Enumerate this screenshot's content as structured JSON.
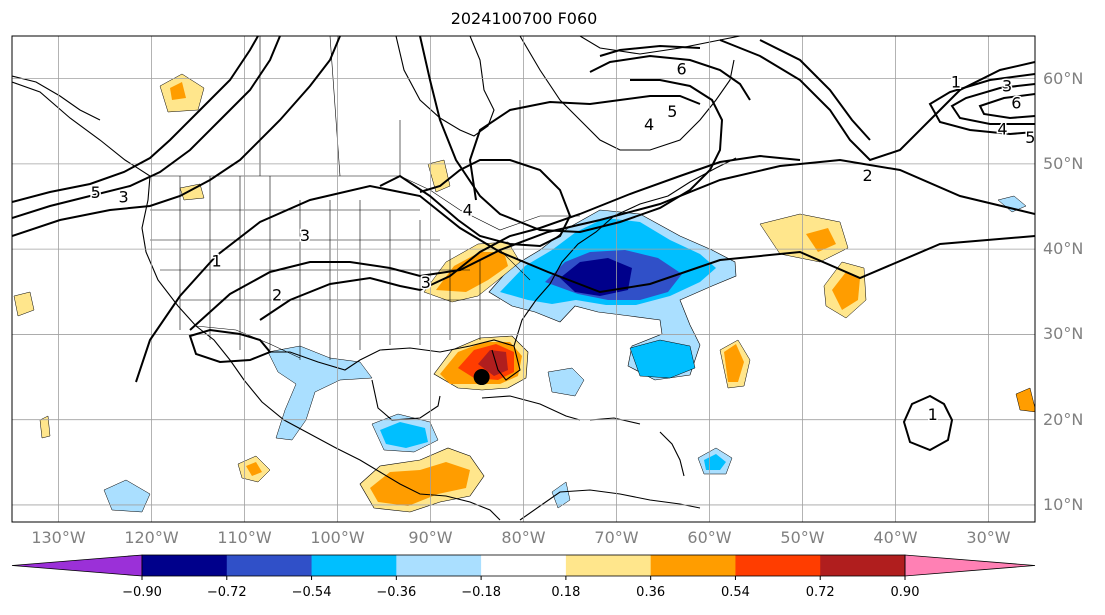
{
  "title": "2024100700 F060",
  "colors": {
    "land_outline": "#000000",
    "grid": "#a0a0a0",
    "contour": "#000000",
    "storm_marker": "#000000"
  },
  "map": {
    "projection": "cylindrical",
    "extent": {
      "lon_min": -135,
      "lon_max": -25,
      "lat_min": 8,
      "lat_max": 65
    },
    "gridlines": true,
    "lon_ticks": [
      {
        "lon": -130,
        "label": "130°W"
      },
      {
        "lon": -120,
        "label": "120°W"
      },
      {
        "lon": -110,
        "label": "110°W"
      },
      {
        "lon": -100,
        "label": "100°W"
      },
      {
        "lon": -90,
        "label": "90°W"
      },
      {
        "lon": -80,
        "label": "80°W"
      },
      {
        "lon": -70,
        "label": "70°W"
      },
      {
        "lon": -60,
        "label": "60°W"
      },
      {
        "lon": -50,
        "label": "50°W"
      },
      {
        "lon": -40,
        "label": "40°W"
      },
      {
        "lon": -30,
        "label": "30°W"
      }
    ],
    "lat_ticks": [
      {
        "lat": 10,
        "label": "10°N"
      },
      {
        "lat": 20,
        "label": "20°N"
      },
      {
        "lat": 30,
        "label": "30°N"
      },
      {
        "lat": 40,
        "label": "40°N"
      },
      {
        "lat": 50,
        "label": "50°N"
      },
      {
        "lat": 60,
        "label": "60°N"
      }
    ],
    "storm_marker": {
      "lon": -84.5,
      "lat": 25.0
    },
    "contour_labels": [
      {
        "text": "1",
        "lon": -113,
        "lat": 38.5
      },
      {
        "text": "2",
        "lon": -106.5,
        "lat": 34.5
      },
      {
        "text": "3",
        "lon": -103.5,
        "lat": 41.5
      },
      {
        "text": "3",
        "lon": -90.5,
        "lat": 36.0
      },
      {
        "text": "4",
        "lon": -86,
        "lat": 44.5
      },
      {
        "text": "4",
        "lon": -66.5,
        "lat": 54.5
      },
      {
        "text": "5",
        "lon": -64,
        "lat": 56.0
      },
      {
        "text": "6",
        "lon": -63,
        "lat": 61.0
      },
      {
        "text": "2",
        "lon": -43,
        "lat": 48.5
      },
      {
        "text": "1",
        "lon": -33.5,
        "lat": 59.5
      },
      {
        "text": "3",
        "lon": -28,
        "lat": 59.0
      },
      {
        "text": "6",
        "lon": -27,
        "lat": 57.0
      },
      {
        "text": "4",
        "lon": -28.5,
        "lat": 54.0
      },
      {
        "text": "5",
        "lon": -25.5,
        "lat": 53.0
      },
      {
        "text": "1",
        "lon": -36,
        "lat": 20.5
      },
      {
        "text": "5",
        "lon": -126,
        "lat": 46.5
      },
      {
        "text": "3",
        "lon": -123,
        "lat": 46.0
      }
    ]
  },
  "colorbar": {
    "colors": [
      "#9b30d8",
      "#00008b",
      "#3050c8",
      "#00bfff",
      "#aadfff",
      "#ffffff",
      "#ffe68c",
      "#ff9d00",
      "#ff3d00",
      "#b01e1e",
      "#ff80b4"
    ],
    "tick_labels": [
      "−0.90",
      "−0.72",
      "−0.54",
      "−0.36",
      "−0.18",
      "0.18",
      "0.36",
      "0.54",
      "0.72",
      "0.90"
    ]
  }
}
